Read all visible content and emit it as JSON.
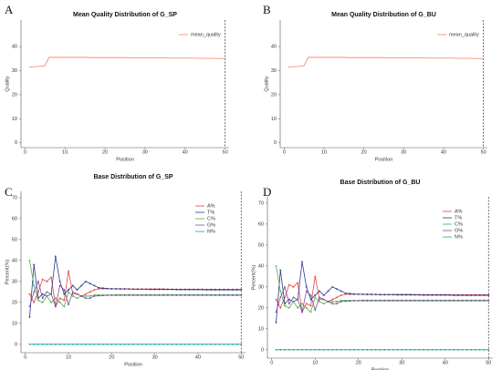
{
  "chart_data": [
    {
      "type": "line",
      "panel": "A",
      "title": "Mean Quality Distribution of G_SP",
      "x_label": "Position",
      "y_label": "Quality",
      "x": [
        1,
        2,
        3,
        4,
        5,
        6,
        7,
        8,
        9,
        10,
        11,
        12,
        13,
        14,
        15,
        16,
        17,
        18,
        19,
        20,
        21,
        22,
        23,
        24,
        25,
        26,
        27,
        28,
        29,
        30,
        31,
        32,
        33,
        34,
        35,
        36,
        37,
        38,
        39,
        40,
        41,
        42,
        43,
        44,
        45,
        46,
        47,
        48,
        49,
        50
      ],
      "series": [
        {
          "name": "mean_quality",
          "color": "#f08060",
          "values": [
            31.5,
            31.6,
            31.7,
            31.8,
            32,
            35.5,
            35.5,
            35.5,
            35.5,
            35.5,
            35.5,
            35.5,
            35.5,
            35.5,
            35.5,
            35.4,
            35.4,
            35.4,
            35.4,
            35.4,
            35.4,
            35.4,
            35.4,
            35.4,
            35.4,
            35.3,
            35.3,
            35.3,
            35.3,
            35.3,
            35.3,
            35.3,
            35.3,
            35.3,
            35.3,
            35.2,
            35.2,
            35.2,
            35.2,
            35.2,
            35.2,
            35.2,
            35.1,
            35.1,
            35.1,
            35.1,
            35.1,
            35,
            35,
            35
          ]
        }
      ],
      "xlim": [
        -1,
        51
      ],
      "xticks": [
        0,
        10,
        20,
        30,
        40,
        50
      ],
      "ylim": [
        -2,
        51
      ],
      "yticks": [
        0,
        10,
        20,
        30,
        40
      ],
      "vline": 50,
      "markers": false,
      "legend": "upper right"
    },
    {
      "type": "line",
      "panel": "B",
      "title": "Mean Quality Distribution of G_BU",
      "x_label": "Position",
      "y_label": "Quality",
      "x": [
        1,
        2,
        3,
        4,
        5,
        6,
        7,
        8,
        9,
        10,
        11,
        12,
        13,
        14,
        15,
        16,
        17,
        18,
        19,
        20,
        21,
        22,
        23,
        24,
        25,
        26,
        27,
        28,
        29,
        30,
        31,
        32,
        33,
        34,
        35,
        36,
        37,
        38,
        39,
        40,
        41,
        42,
        43,
        44,
        45,
        46,
        47,
        48,
        49,
        50
      ],
      "series": [
        {
          "name": "mean_quality",
          "color": "#f08060",
          "values": [
            31.5,
            31.6,
            31.7,
            31.8,
            32,
            35.5,
            35.5,
            35.5,
            35.5,
            35.5,
            35.5,
            35.5,
            35.5,
            35.5,
            35.5,
            35.4,
            35.4,
            35.4,
            35.4,
            35.4,
            35.4,
            35.4,
            35.4,
            35.4,
            35.4,
            35.3,
            35.3,
            35.3,
            35.3,
            35.3,
            35.3,
            35.3,
            35.3,
            35.3,
            35.3,
            35.2,
            35.2,
            35.2,
            35.2,
            35.2,
            35.2,
            35.2,
            35.1,
            35.1,
            35.1,
            35.1,
            35.1,
            35,
            35,
            35
          ]
        }
      ],
      "xlim": [
        -1,
        51
      ],
      "xticks": [
        0,
        10,
        20,
        30,
        40,
        50
      ],
      "ylim": [
        -2,
        51
      ],
      "yticks": [
        0,
        10,
        20,
        30,
        40
      ],
      "vline": 50,
      "markers": false,
      "legend": "upper right"
    },
    {
      "type": "line",
      "panel": "C",
      "title": "Base Distribution of G_SP",
      "x_label": "Position",
      "y_label": "Percent(%)",
      "x": [
        1,
        2,
        3,
        4,
        5,
        6,
        7,
        8,
        9,
        10,
        11,
        12,
        13,
        14,
        15,
        16,
        17,
        18,
        19,
        20,
        21,
        22,
        23,
        24,
        25,
        26,
        27,
        28,
        29,
        30,
        31,
        32,
        33,
        34,
        35,
        36,
        37,
        38,
        39,
        40,
        41,
        42,
        43,
        44,
        45,
        46,
        47,
        48,
        49,
        50
      ],
      "series": [
        {
          "name": "A%",
          "color": "#e8413c",
          "values": [
            24,
            20,
            25,
            31,
            30,
            32,
            18,
            22,
            21,
            35,
            24,
            24,
            23,
            24,
            25,
            26,
            26.5,
            26.5,
            26.5,
            26.5,
            26.5,
            26.5,
            26.5,
            26.4,
            26.4,
            26.4,
            26.4,
            26.4,
            26.4,
            26.4,
            26.4,
            26.4,
            26.3,
            26.3,
            26.3,
            26.3,
            26.3,
            26.3,
            26.3,
            26.3,
            26.3,
            26.2,
            26.2,
            26.2,
            26.2,
            26.2,
            26.2,
            26.2,
            26.2,
            26.2
          ]
        },
        {
          "name": "T%",
          "color": "#2f3a8f",
          "values": [
            13,
            38,
            22,
            24,
            23,
            24,
            42,
            30,
            24,
            26,
            28,
            26,
            28,
            30,
            29,
            28,
            27,
            26.8,
            26.6,
            26.5,
            26.5,
            26.4,
            26.4,
            26.4,
            26.3,
            26.3,
            26.3,
            26.3,
            26.2,
            26.2,
            26.2,
            26.2,
            26.2,
            26.2,
            26.1,
            26.1,
            26.1,
            26.1,
            26.1,
            26.1,
            26.1,
            26,
            26,
            26,
            26,
            26,
            26,
            26,
            26,
            26
          ]
        },
        {
          "name": "C%",
          "color": "#4cae4c",
          "values": [
            40,
            28,
            21,
            20,
            23,
            20,
            22,
            20,
            18,
            25,
            23,
            22,
            23,
            23,
            23,
            23.5,
            23.5,
            23.5,
            23.5,
            23.5,
            23.6,
            23.6,
            23.6,
            23.6,
            23.6,
            23.6,
            23.6,
            23.6,
            23.6,
            23.6,
            23.6,
            23.6,
            23.6,
            23.6,
            23.6,
            23.6,
            23.6,
            23.6,
            23.6,
            23.6,
            23.6,
            23.6,
            23.6,
            23.6,
            23.6,
            23.6,
            23.6,
            23.6,
            23.6,
            23.6
          ]
        },
        {
          "name": "G%",
          "color": "#7b4fa0",
          "values": [
            18,
            25,
            30,
            22,
            25,
            24,
            18,
            28,
            26,
            19,
            25,
            24,
            23,
            22,
            22,
            23,
            23.2,
            23.3,
            23.4,
            23.4,
            23.4,
            23.4,
            23.4,
            23.4,
            23.4,
            23.4,
            23.4,
            23.4,
            23.4,
            23.4,
            23.4,
            23.4,
            23.4,
            23.4,
            23.4,
            23.4,
            23.4,
            23.4,
            23.4,
            23.4,
            23.4,
            23.4,
            23.4,
            23.4,
            23.4,
            23.4,
            23.4,
            23.4,
            23.4,
            23.4
          ]
        },
        {
          "name": "N%",
          "color": "#1fa39a",
          "values": [
            0,
            0,
            0,
            0,
            0,
            0,
            0,
            0,
            0,
            0,
            0,
            0,
            0,
            0,
            0,
            0,
            0,
            0,
            0,
            0,
            0,
            0,
            0,
            0,
            0,
            0,
            0,
            0,
            0,
            0,
            0,
            0,
            0,
            0,
            0,
            0,
            0,
            0,
            0,
            0,
            0,
            0,
            0,
            0,
            0,
            0,
            0,
            0,
            0,
            0
          ]
        }
      ],
      "xlim": [
        -1,
        51
      ],
      "xticks": [
        0,
        10,
        20,
        30,
        40,
        50
      ],
      "ylim": [
        -4,
        73
      ],
      "yticks": [
        0,
        10,
        20,
        30,
        40,
        50,
        60,
        70
      ],
      "vline": 50,
      "markers": true,
      "legend": "upper right"
    },
    {
      "type": "line",
      "panel": "D",
      "title": "Base Distribution of G_BU",
      "x_label": "Position",
      "y_label": "Percent(%)",
      "x": [
        1,
        2,
        3,
        4,
        5,
        6,
        7,
        8,
        9,
        10,
        11,
        12,
        13,
        14,
        15,
        16,
        17,
        18,
        19,
        20,
        21,
        22,
        23,
        24,
        25,
        26,
        27,
        28,
        29,
        30,
        31,
        32,
        33,
        34,
        35,
        36,
        37,
        38,
        39,
        40,
        41,
        42,
        43,
        44,
        45,
        46,
        47,
        48,
        49,
        50
      ],
      "series": [
        {
          "name": "A%",
          "color": "#e8413c",
          "values": [
            24,
            20,
            25,
            31,
            30,
            32,
            18,
            22,
            21,
            35,
            24,
            24,
            23,
            24,
            25,
            26,
            26.5,
            26.5,
            26.5,
            26.5,
            26.5,
            26.5,
            26.5,
            26.4,
            26.4,
            26.4,
            26.4,
            26.4,
            26.4,
            26.4,
            26.4,
            26.4,
            26.3,
            26.3,
            26.3,
            26.3,
            26.3,
            26.3,
            26.3,
            26.3,
            26.3,
            26.2,
            26.2,
            26.2,
            26.2,
            26.2,
            26.2,
            26.2,
            26.2,
            26.2
          ]
        },
        {
          "name": "T%",
          "color": "#2f3a8f",
          "values": [
            13,
            38,
            22,
            24,
            23,
            24,
            42,
            30,
            24,
            26,
            28,
            26,
            28,
            30,
            29,
            28,
            27,
            26.8,
            26.6,
            26.5,
            26.5,
            26.4,
            26.4,
            26.4,
            26.3,
            26.3,
            26.3,
            26.3,
            26.2,
            26.2,
            26.2,
            26.2,
            26.2,
            26.2,
            26.1,
            26.1,
            26.1,
            26.1,
            26.1,
            26.1,
            26.1,
            26,
            26,
            26,
            26,
            26,
            26,
            26,
            26,
            26
          ]
        },
        {
          "name": "C%",
          "color": "#4cae4c",
          "values": [
            40,
            28,
            21,
            20,
            23,
            20,
            22,
            20,
            18,
            25,
            23,
            22,
            23,
            23,
            23,
            23.5,
            23.5,
            23.5,
            23.5,
            23.5,
            23.6,
            23.6,
            23.6,
            23.6,
            23.6,
            23.6,
            23.6,
            23.6,
            23.6,
            23.6,
            23.6,
            23.6,
            23.6,
            23.6,
            23.6,
            23.6,
            23.6,
            23.6,
            23.6,
            23.6,
            23.6,
            23.6,
            23.6,
            23.6,
            23.6,
            23.6,
            23.6,
            23.6,
            23.6,
            23.6
          ]
        },
        {
          "name": "G%",
          "color": "#7b4fa0",
          "values": [
            18,
            25,
            30,
            22,
            25,
            24,
            18,
            28,
            26,
            19,
            25,
            24,
            23,
            22,
            22,
            23,
            23.2,
            23.3,
            23.4,
            23.4,
            23.4,
            23.4,
            23.4,
            23.4,
            23.4,
            23.4,
            23.4,
            23.4,
            23.4,
            23.4,
            23.4,
            23.4,
            23.4,
            23.4,
            23.4,
            23.4,
            23.4,
            23.4,
            23.4,
            23.4,
            23.4,
            23.4,
            23.4,
            23.4,
            23.4,
            23.4,
            23.4,
            23.4,
            23.4,
            23.4
          ]
        },
        {
          "name": "N%",
          "color": "#1fa39a",
          "values": [
            0,
            0,
            0,
            0,
            0,
            0,
            0,
            0,
            0,
            0,
            0,
            0,
            0,
            0,
            0,
            0,
            0,
            0,
            0,
            0,
            0,
            0,
            0,
            0,
            0,
            0,
            0,
            0,
            0,
            0,
            0,
            0,
            0,
            0,
            0,
            0,
            0,
            0,
            0,
            0,
            0,
            0,
            0,
            0,
            0,
            0,
            0,
            0,
            0,
            0
          ]
        }
      ],
      "xlim": [
        -1,
        51
      ],
      "xticks": [
        0,
        10,
        20,
        30,
        40,
        50
      ],
      "ylim": [
        -4,
        73
      ],
      "yticks": [
        0,
        10,
        20,
        30,
        40,
        50,
        60,
        70
      ],
      "vline": 50,
      "markers": true,
      "legend": "upper right"
    }
  ]
}
